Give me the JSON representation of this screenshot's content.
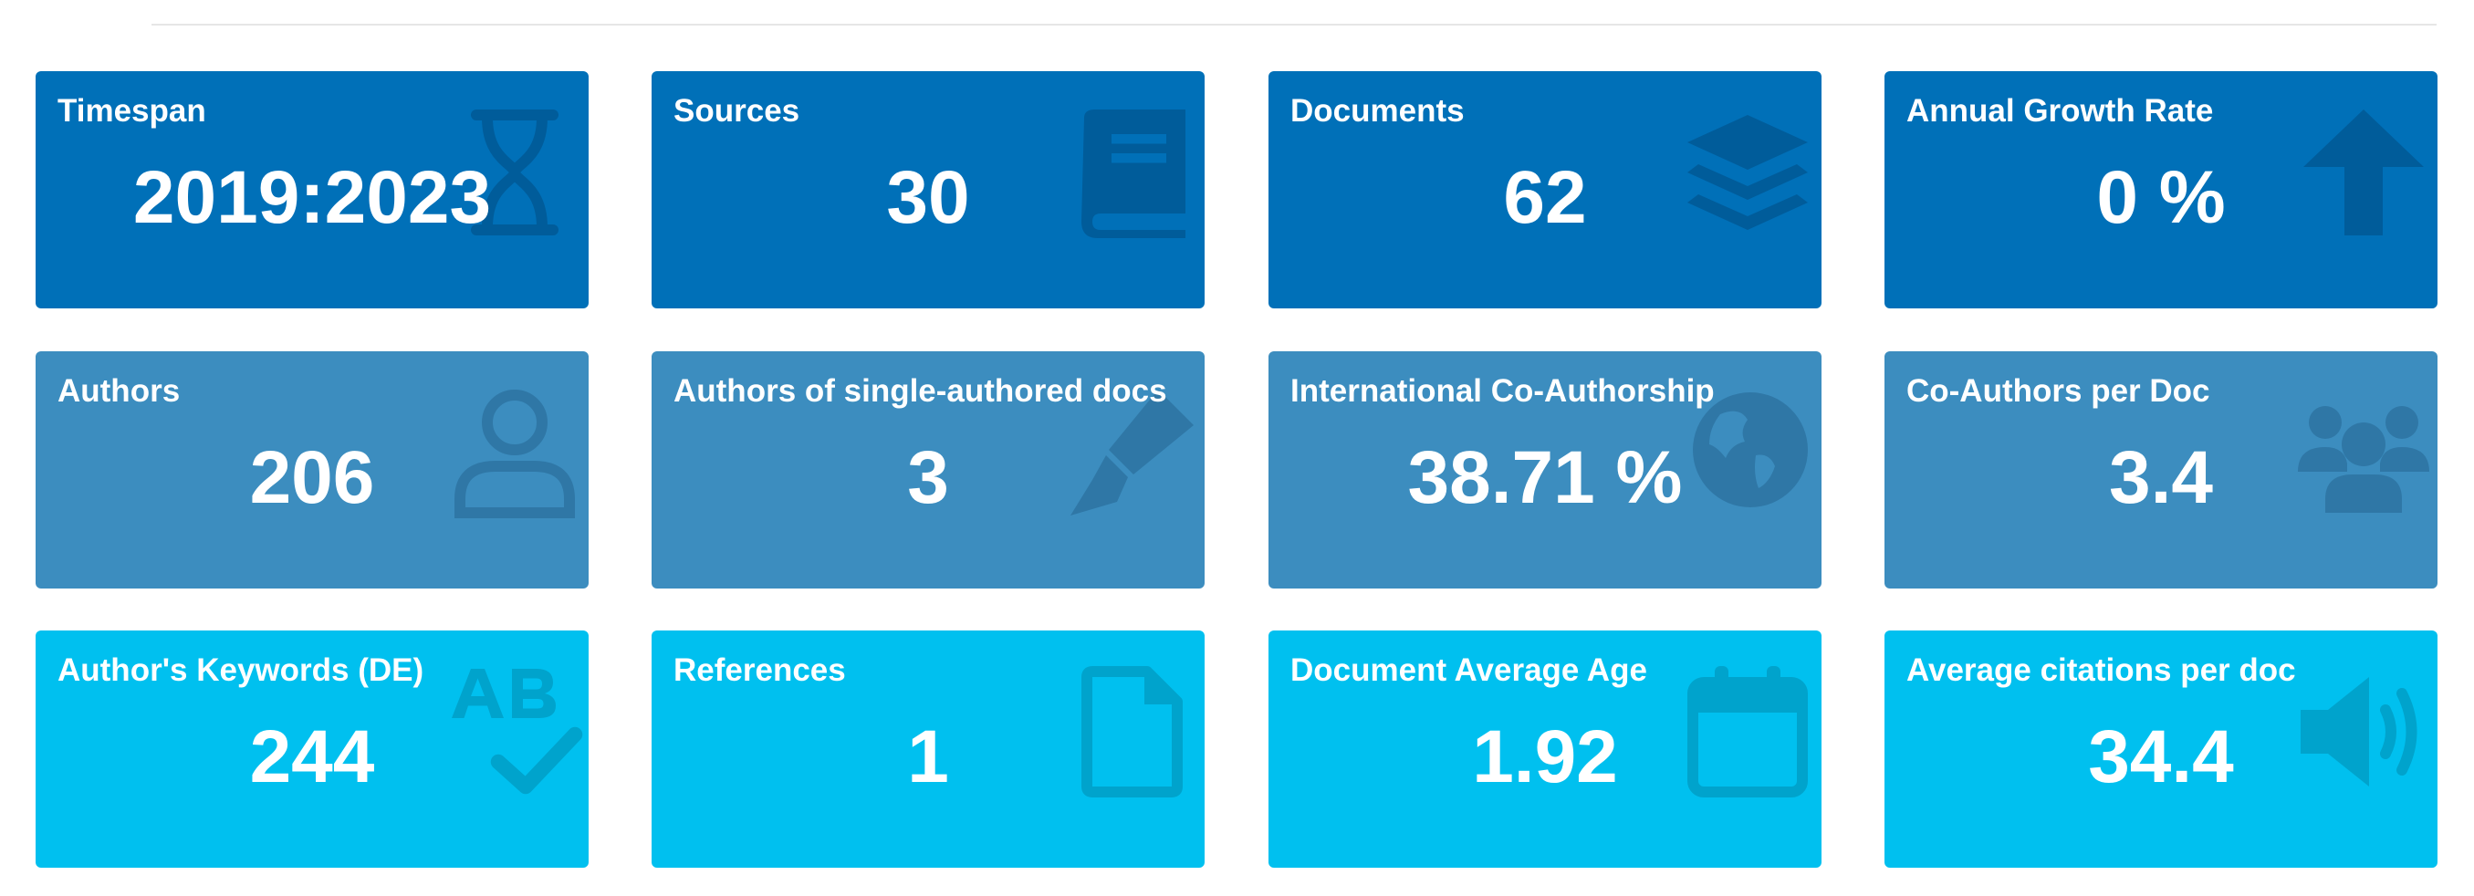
{
  "colors": {
    "dark": "#0070b8",
    "mid": "#3c8dbf",
    "light": "#00c0ef",
    "text": "#ffffff"
  },
  "boxes": [
    {
      "title": "Timespan",
      "value": "2019:2023",
      "icon": "hourglass-icon"
    },
    {
      "title": "Sources",
      "value": "30",
      "icon": "book-icon"
    },
    {
      "title": "Documents",
      "value": "62",
      "icon": "layers-icon"
    },
    {
      "title": "Annual Growth Rate",
      "value": "0 %",
      "icon": "arrow-up-icon"
    },
    {
      "title": "Authors",
      "value": "206",
      "icon": "user-icon"
    },
    {
      "title": "Authors of single-authored docs",
      "value": "3",
      "icon": "pen-nib-icon"
    },
    {
      "title": "International Co-Authorship",
      "value": "38.71 %",
      "icon": "globe-icon"
    },
    {
      "title": "Co-Authors per Doc",
      "value": "3.4",
      "icon": "users-icon"
    },
    {
      "title": "Author's Keywords (DE)",
      "value": "244",
      "icon": "spell-check-icon"
    },
    {
      "title": "References",
      "value": "1",
      "icon": "file-icon"
    },
    {
      "title": "Document Average Age",
      "value": "1.92",
      "icon": "calendar-icon"
    },
    {
      "title": "Average citations per doc",
      "value": "34.4",
      "icon": "volume-icon"
    }
  ]
}
